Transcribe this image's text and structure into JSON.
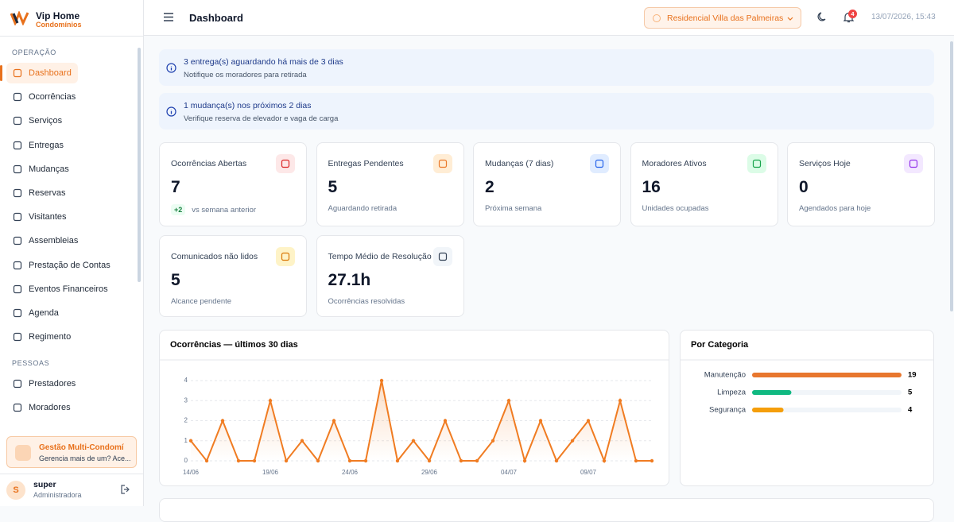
{
  "sidebar": {
    "brand": {
      "name": "Vip Home",
      "sub": "Condomínios"
    },
    "sections": [
      {
        "title": "OPERAÇÃO",
        "items": [
          "Dashboard",
          "Ocorrências",
          "Serviços",
          "Entregas",
          "Mudanças",
          "Reservas",
          "Visitantes",
          "Assembleias",
          "Prestação de Contas",
          "Eventos Financeiros",
          "Agenda",
          "Regimento"
        ]
      },
      {
        "title": "PESSOAS",
        "items": [
          "Prestadores",
          "Moradores"
        ]
      }
    ],
    "promo": {
      "title": "Gestão Multi-Condomí",
      "text": "Gerencia mais de um? Ace..."
    },
    "user": {
      "initial": "S",
      "name": "super",
      "role": "Administradora"
    }
  },
  "header": {
    "title": "Dashboard",
    "condominium": "Residencial Villa das Palmeiras",
    "notifications": "4",
    "datetime": "13/07/2026, 15:43"
  },
  "alerts": [
    {
      "title": "3 entrega(s) aguardando há mais de 3 dias",
      "text": "Notifique os moradores para retirada"
    },
    {
      "title": "1 mudança(s) nos próximos 2 dias",
      "text": "Verifique reserva de elevador e vaga de carga"
    }
  ],
  "cards": [
    {
      "title": "Ocorrências Abertas",
      "value": "7",
      "trend": "+2",
      "subtitle": "vs semana anterior"
    },
    {
      "title": "Entregas Pendentes",
      "value": "5",
      "subtitle": "Aguardando retirada"
    },
    {
      "title": "Mudanças (7 dias)",
      "value": "2",
      "subtitle": "Próxima semana"
    },
    {
      "title": "Moradores Ativos",
      "value": "16",
      "subtitle": "Unidades ocupadas"
    },
    {
      "title": "Serviços Hoje",
      "value": "0",
      "subtitle": "Agendados para hoje"
    },
    {
      "title": "Comunicados não lidos",
      "value": "5",
      "subtitle": "Alcance pendente"
    },
    {
      "title": "Tempo Médio de Resolução",
      "value": "27.1h",
      "subtitle": "Ocorrências resolvidas"
    }
  ],
  "chart_data": [
    {
      "type": "line",
      "title": "Ocorrências — últimos 30 dias",
      "color": "#f07c22",
      "grid": true,
      "categories": [
        "14/06",
        null,
        null,
        null,
        null,
        "19/06",
        null,
        null,
        null,
        null,
        "24/06",
        null,
        null,
        null,
        null,
        "29/06",
        null,
        null,
        null,
        null,
        "04/07",
        null,
        null,
        null,
        null,
        "09/07",
        null,
        null,
        null,
        null
      ],
      "values": [
        1,
        0,
        2,
        0,
        0,
        3,
        0,
        1,
        0,
        2,
        0,
        0,
        4,
        0,
        1,
        0,
        2,
        0,
        0,
        1,
        3,
        0,
        2,
        0,
        1,
        2,
        0,
        3,
        0,
        0
      ],
      "ylim": [
        0,
        4
      ],
      "yticks": [
        0,
        1,
        2,
        3,
        4
      ]
    },
    {
      "type": "hbar",
      "title": "Por Categoria",
      "categories": [
        "Manutenção",
        "Limpeza",
        "Segurança"
      ],
      "values": [
        19,
        5,
        4
      ],
      "colors": [
        "#e8772e",
        "#10b981",
        "#f59e0b"
      ]
    }
  ]
}
